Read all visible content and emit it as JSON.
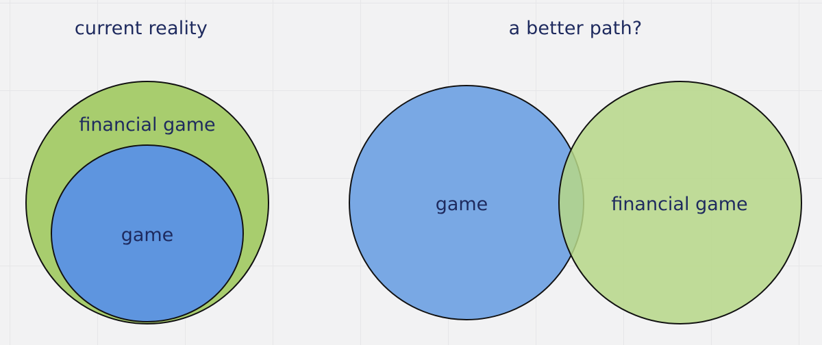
{
  "left_panel": {
    "title": "current reality",
    "outer_label": "financial game",
    "inner_label": "game"
  },
  "right_panel": {
    "title": "a better path?",
    "left_label": "game",
    "right_label": "financial game"
  },
  "colors": {
    "green": "#a8cd6e",
    "blue_dark": "#5e95df",
    "blue_light": "#79a8e4",
    "green_light": "#b6d787",
    "text": "#1e2a5e",
    "stroke": "#111111"
  }
}
